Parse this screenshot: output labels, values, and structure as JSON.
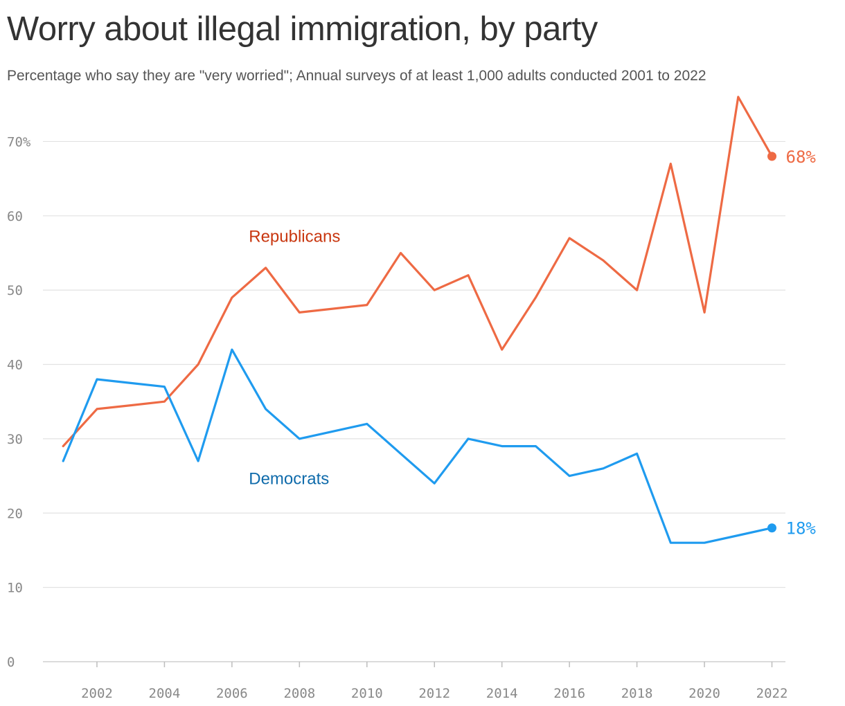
{
  "header": {
    "title": "Worry about illegal immigration, by party",
    "subtitle": "Percentage who say they are \"very worried\"; Annual surveys of at least 1,000 adults conducted 2001 to 2022"
  },
  "chart_data": {
    "type": "line",
    "title": "Worry about illegal immigration, by party",
    "subtitle": "Percentage who say they are \"very worried\"; Annual surveys of at least 1,000 adults conducted 2001 to 2022",
    "xlabel": "",
    "ylabel": "",
    "x": [
      2001,
      2002,
      2003,
      2004,
      2005,
      2006,
      2007,
      2008,
      2009,
      2010,
      2011,
      2012,
      2013,
      2014,
      2015,
      2016,
      2017,
      2018,
      2019,
      2020,
      2021,
      2022
    ],
    "xlim": [
      2000.4,
      2022.4
    ],
    "ylim": [
      0,
      76
    ],
    "x_ticks": [
      2002,
      2004,
      2006,
      2008,
      2010,
      2012,
      2014,
      2016,
      2018,
      2020,
      2022
    ],
    "x_tick_labels": [
      "2002",
      "2004",
      "2006",
      "2008",
      "2010",
      "2012",
      "2014",
      "2016",
      "2018",
      "2020",
      "2022"
    ],
    "y_ticks": [
      0,
      10,
      20,
      30,
      40,
      50,
      60,
      70
    ],
    "y_tick_labels": [
      "0",
      "10",
      "20",
      "30",
      "40",
      "50",
      "60",
      "70%"
    ],
    "grid": "horizontal",
    "series": [
      {
        "name": "Republicans",
        "color": "#ee6a44",
        "label_color": "#c8360f",
        "end_label": "68%",
        "values": [
          29,
          34,
          34.5,
          35,
          40,
          49,
          53,
          47,
          47.5,
          48,
          55,
          50,
          52,
          42,
          49,
          57,
          54,
          50,
          67,
          47,
          76,
          68
        ]
      },
      {
        "name": "Democrats",
        "color": "#1f9bef",
        "label_color": "#0f6bab",
        "end_label": "18%",
        "values": [
          27,
          38,
          37.5,
          37,
          27,
          42,
          34,
          30,
          31,
          32,
          28,
          24,
          30,
          29,
          29,
          25,
          26,
          28,
          16,
          16,
          17,
          18
        ]
      }
    ]
  }
}
